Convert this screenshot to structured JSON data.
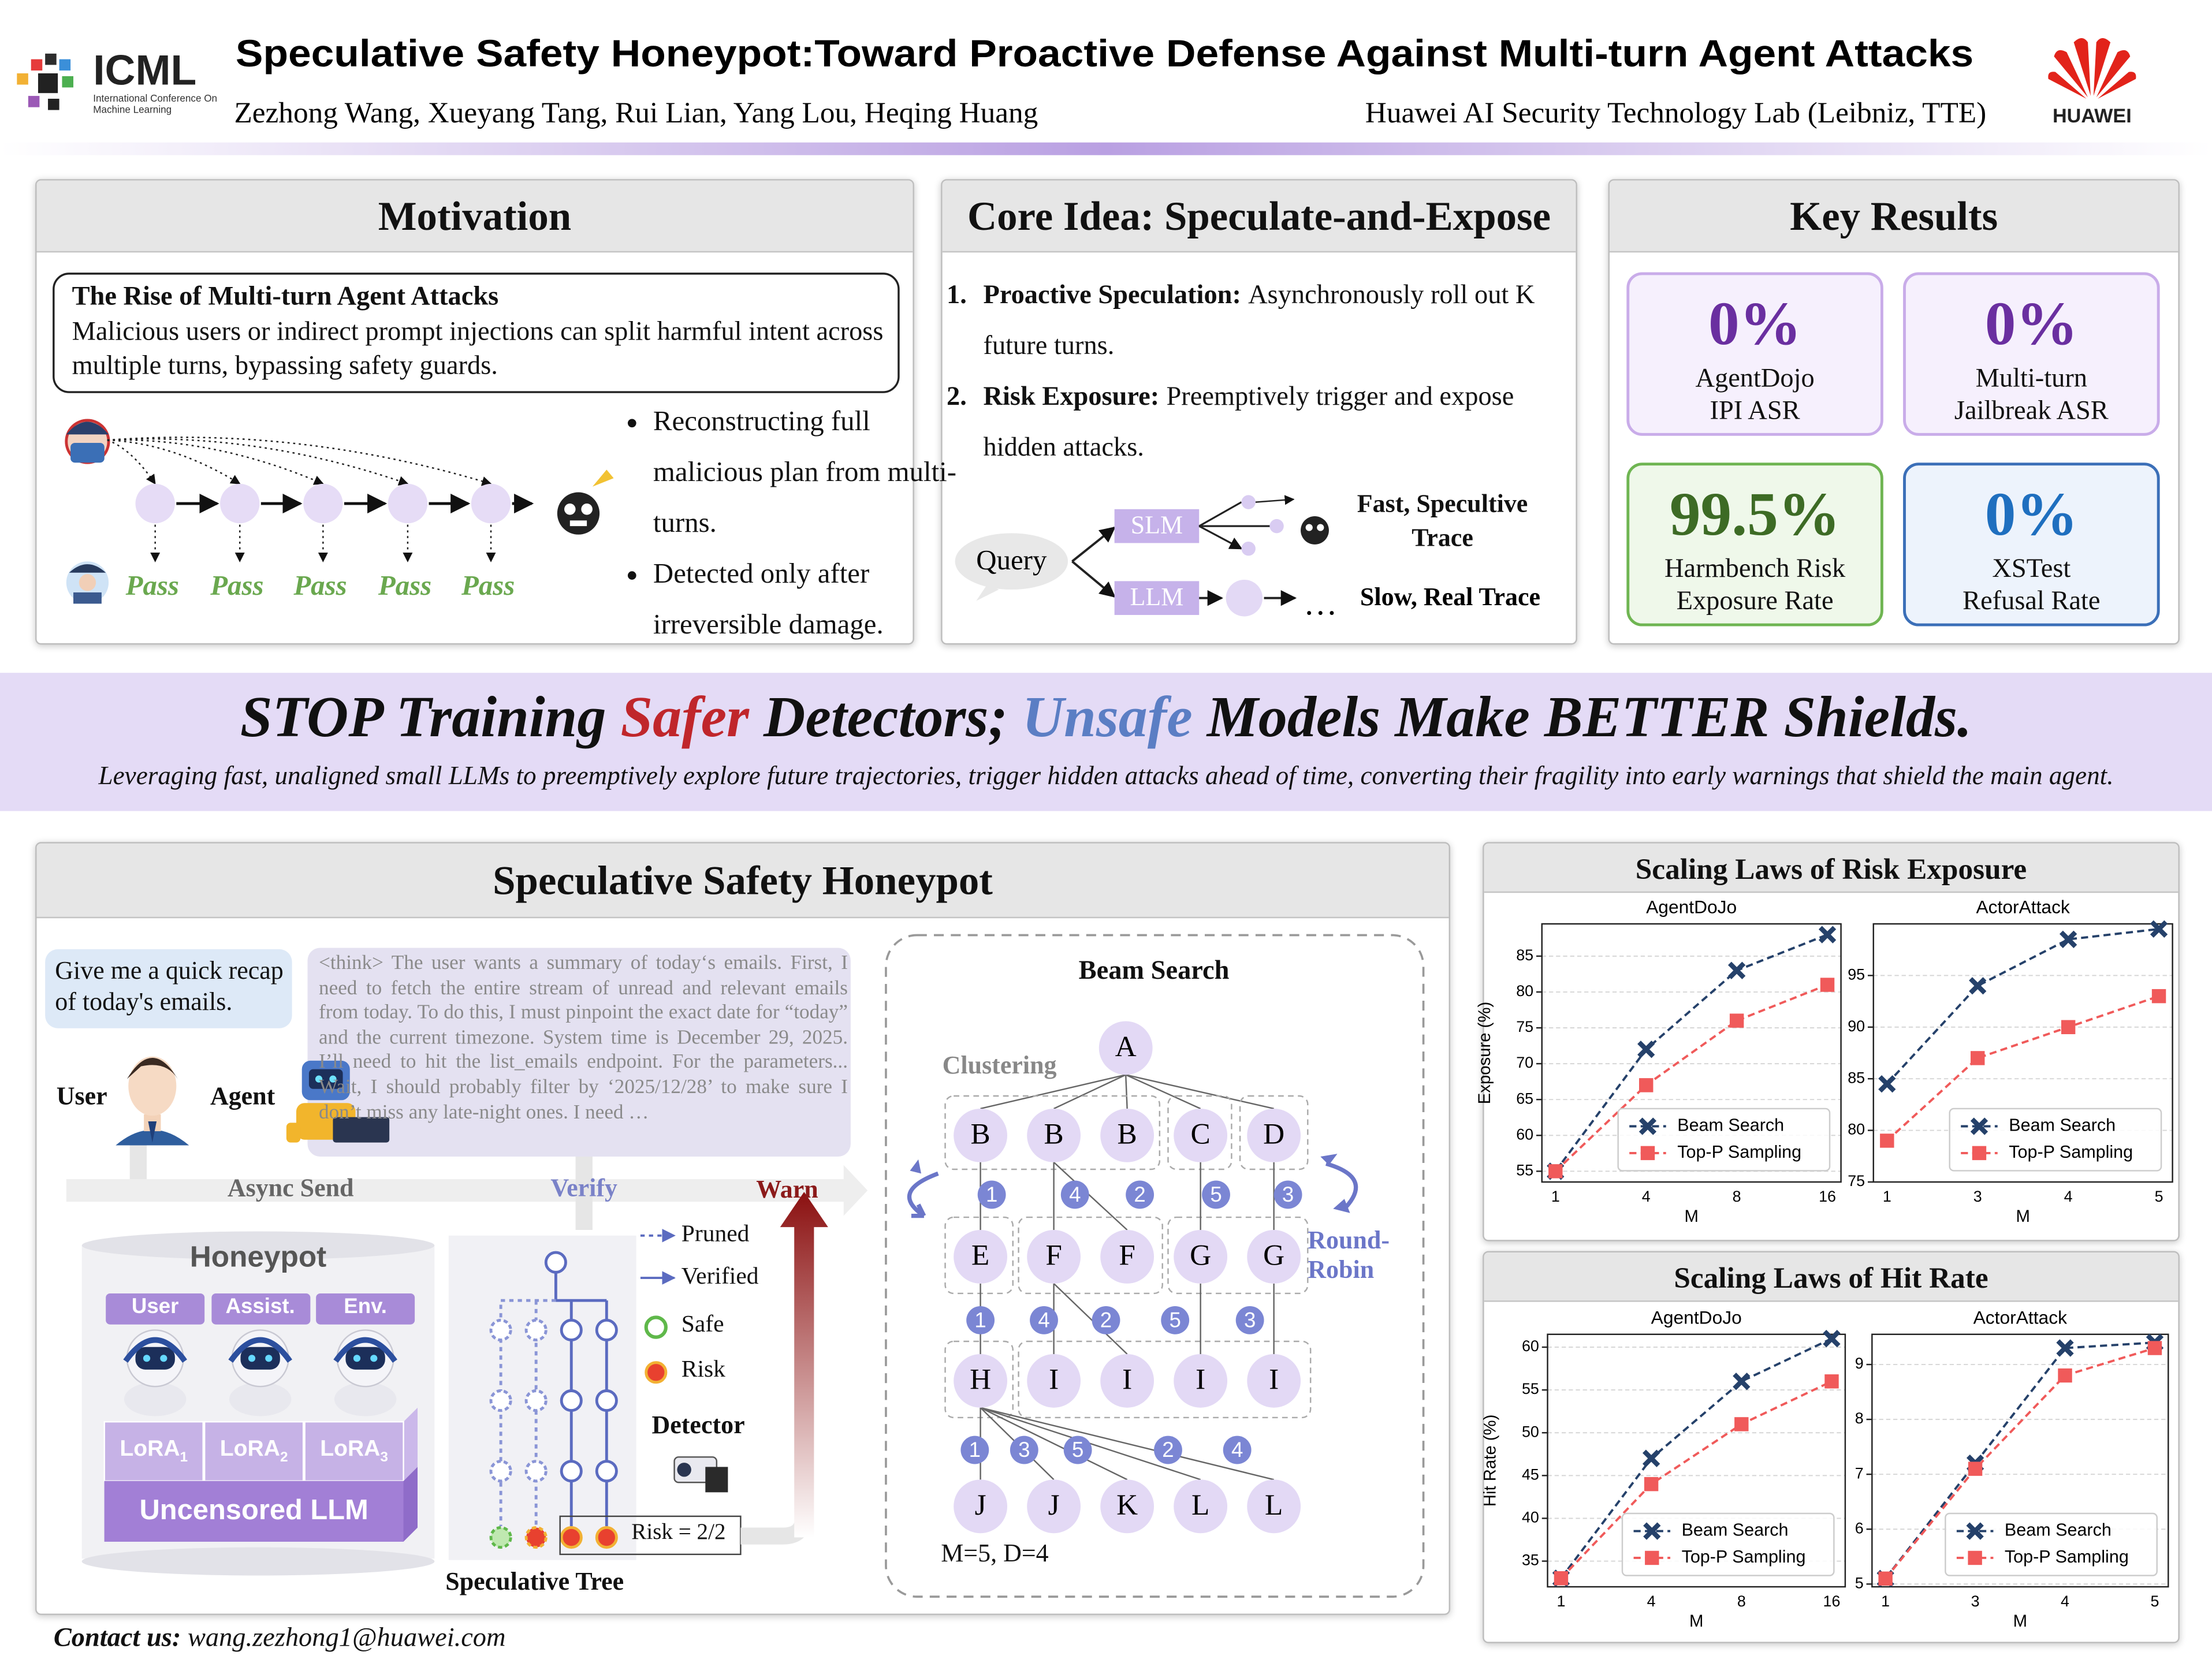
{
  "header": {
    "title": "Speculative Safety Honeypot:Toward Proactive Defense Against Multi-turn Agent Attacks",
    "authors": "Zezhong Wang, Xueyang Tang, Rui Lian, Yang Lou, Heqing Huang",
    "affiliation": "Huawei AI Security Technology Lab (Leibniz, TTE)",
    "conference": "ICML",
    "conference_full": "International Conference On Machine Learning",
    "company": "HUAWEI"
  },
  "motivation": {
    "heading": "Motivation",
    "box_title": "The Rise of Multi-turn Agent Attacks",
    "box_text": "Malicious users or indirect prompt injections can split harmful intent across multiple turns, bypassing safety guards.",
    "checks": [
      "Pass",
      "Pass",
      "Pass",
      "Pass",
      "Pass"
    ],
    "bullets": [
      "Reconstructing full malicious plan from multi-turns.",
      "Detected only after irreversible damage."
    ]
  },
  "core_idea": {
    "heading": "Core Idea: Speculate-and-Expose",
    "steps": [
      {
        "number": "1.",
        "label": "Proactive Speculation:",
        "text": "Asynchronously roll out K future turns."
      },
      {
        "number": "2.",
        "label": "Risk Exposure:",
        "text": "Preemptively trigger and expose hidden attacks."
      }
    ],
    "diagram": {
      "query": "Query",
      "slm": "SLM",
      "llm": "LLM",
      "fast": "Fast, Specultive Trace",
      "ellipsis": "…",
      "slow": "Slow, Real Trace"
    }
  },
  "key_results": {
    "heading": "Key Results",
    "cards": [
      {
        "value": "0%",
        "label": [
          "AgentDojo",
          "IPI ASR"
        ]
      },
      {
        "value": "0%",
        "label": [
          "Multi-turn",
          "Jailbreak ASR"
        ]
      },
      {
        "value": "99.5%",
        "label": [
          "Harmbench Risk",
          "Exposure Rate"
        ]
      },
      {
        "value": "0%",
        "label": [
          "XSTest",
          "Refusal Rate"
        ]
      }
    ]
  },
  "banner": {
    "headline": {
      "before": "STOP Training",
      "safer": "Safer",
      "middle": "Detectors;",
      "unsafe": "Unsafe",
      "after": "Models Make BETTER Shields."
    },
    "subtitle": "Leveraging fast, unaligned small LLMs to preemptively explore future trajectories, trigger hidden attacks ahead of time, converting their fragility into early warnings that shield the main agent."
  },
  "honeypot": {
    "heading": "Speculative Safety Honeypot",
    "user_message": "Give me a quick recap of today's emails.",
    "think": "<think> The user wants a summary of today‘s emails. First, I need to fetch the entire stream of unread and relevant emails from today. To do this, I must pinpoint the exact date for “today” and the current timezone. System time is December 29, 2025. I’ll need to hit the list_emails endpoint. For the parameters... Wait, I should probably filter by ‘2025/12/28’ to make sure I don’t miss any late-night ones. I need …",
    "user": "User",
    "agent": "Agent",
    "async_send": "Async Send",
    "verify": "Verify",
    "warn": "Warn",
    "honeypot_title": "Honeypot",
    "roles": [
      "User",
      "Assist.",
      "Env."
    ],
    "lora": [
      {
        "base": "LoRA",
        "sub": "1"
      },
      {
        "base": "LoRA",
        "sub": "2"
      },
      {
        "base": "LoRA",
        "sub": "3"
      }
    ],
    "base_model": "Uncensored LLM",
    "tree_legend": [
      "Pruned",
      "Verified",
      "Safe",
      "Risk"
    ],
    "detector": "Detector",
    "risk": "Risk = 2/2",
    "tree_title": "Speculative Tree",
    "beam": {
      "title": "Beam Search",
      "clustering": "Clustering",
      "round_robin": "Round-Robin",
      "root": "A",
      "levels": [
        [
          "B",
          "B",
          "B",
          "C",
          "D"
        ],
        [
          "E",
          "F",
          "F",
          "G",
          "G"
        ],
        [
          "H",
          "I",
          "I",
          "I",
          "I"
        ],
        [
          "J",
          "J",
          "K",
          "L",
          "L"
        ]
      ],
      "orders": [
        [
          "1",
          "4",
          "2",
          "5",
          "3"
        ],
        [
          "1",
          "4",
          "2",
          "5",
          "3"
        ],
        [
          "1",
          "3",
          "5",
          "2",
          "4"
        ]
      ],
      "setting": "M=5, D=4"
    }
  },
  "scaling": {
    "panels": [
      {
        "title": "Scaling Laws of Risk Exposure"
      },
      {
        "title": "Scaling Laws of Hit Rate"
      }
    ]
  },
  "contact": {
    "label": "Contact us:",
    "email": "wang.zezhong1@huawei.com"
  },
  "chart_data": [
    {
      "type": "line",
      "title": "AgentDoJo",
      "xlabel": "M",
      "ylabel": "Exposure (%)",
      "categories": [
        "1",
        "4",
        "8",
        "16"
      ],
      "ylim": [
        53.5,
        89.5
      ],
      "yticks": [
        55,
        60,
        65,
        70,
        75,
        80,
        85
      ],
      "grid": true,
      "legend": "lower right",
      "series": [
        {
          "name": "Beam Search",
          "color": "#25416a",
          "marker": "x",
          "values": [
            55,
            72,
            83,
            88
          ]
        },
        {
          "name": "Top-P Sampling",
          "color": "#f05a5a",
          "marker": "square",
          "values": [
            55,
            67,
            76,
            81
          ]
        }
      ]
    },
    {
      "type": "line",
      "title": "ActorAttack",
      "xlabel": "M",
      "categories": [
        "1",
        "3",
        "4",
        "5"
      ],
      "ylim": [
        75,
        100
      ],
      "yticks": [
        75,
        80,
        85,
        90,
        95
      ],
      "grid": true,
      "legend": "lower right",
      "series": [
        {
          "name": "Beam Search",
          "color": "#25416a",
          "marker": "x",
          "values": [
            84.5,
            94,
            98.5,
            99.5
          ]
        },
        {
          "name": "Top-P Sampling",
          "color": "#f05a5a",
          "marker": "square",
          "values": [
            79,
            87,
            90,
            93
          ]
        }
      ]
    },
    {
      "type": "line",
      "title": "AgentDoJo",
      "xlabel": "M",
      "ylabel": "Hit Rate (%)",
      "categories": [
        "1",
        "4",
        "8",
        "16"
      ],
      "ylim": [
        32,
        61.5
      ],
      "yticks": [
        35,
        40,
        45,
        50,
        55,
        60
      ],
      "grid": true,
      "legend": "lower right",
      "series": [
        {
          "name": "Beam Search",
          "color": "#25416a",
          "marker": "x",
          "values": [
            33,
            47,
            56,
            61
          ]
        },
        {
          "name": "Top-P Sampling",
          "color": "#f05a5a",
          "marker": "square",
          "values": [
            33,
            44,
            51,
            56
          ]
        }
      ]
    },
    {
      "type": "line",
      "title": "ActorAttack",
      "xlabel": "M",
      "categories": [
        "1",
        "3",
        "4",
        "5"
      ],
      "ylim": [
        4.95,
        9.55
      ],
      "yticks": [
        5,
        6,
        7,
        8,
        9
      ],
      "grid": true,
      "legend": "lower right",
      "series": [
        {
          "name": "Beam Search",
          "color": "#25416a",
          "marker": "x",
          "values": [
            5.1,
            7.2,
            9.3,
            9.4
          ]
        },
        {
          "name": "Top-P Sampling",
          "color": "#f05a5a",
          "marker": "square",
          "values": [
            5.1,
            7.1,
            8.8,
            9.3
          ]
        }
      ]
    }
  ]
}
